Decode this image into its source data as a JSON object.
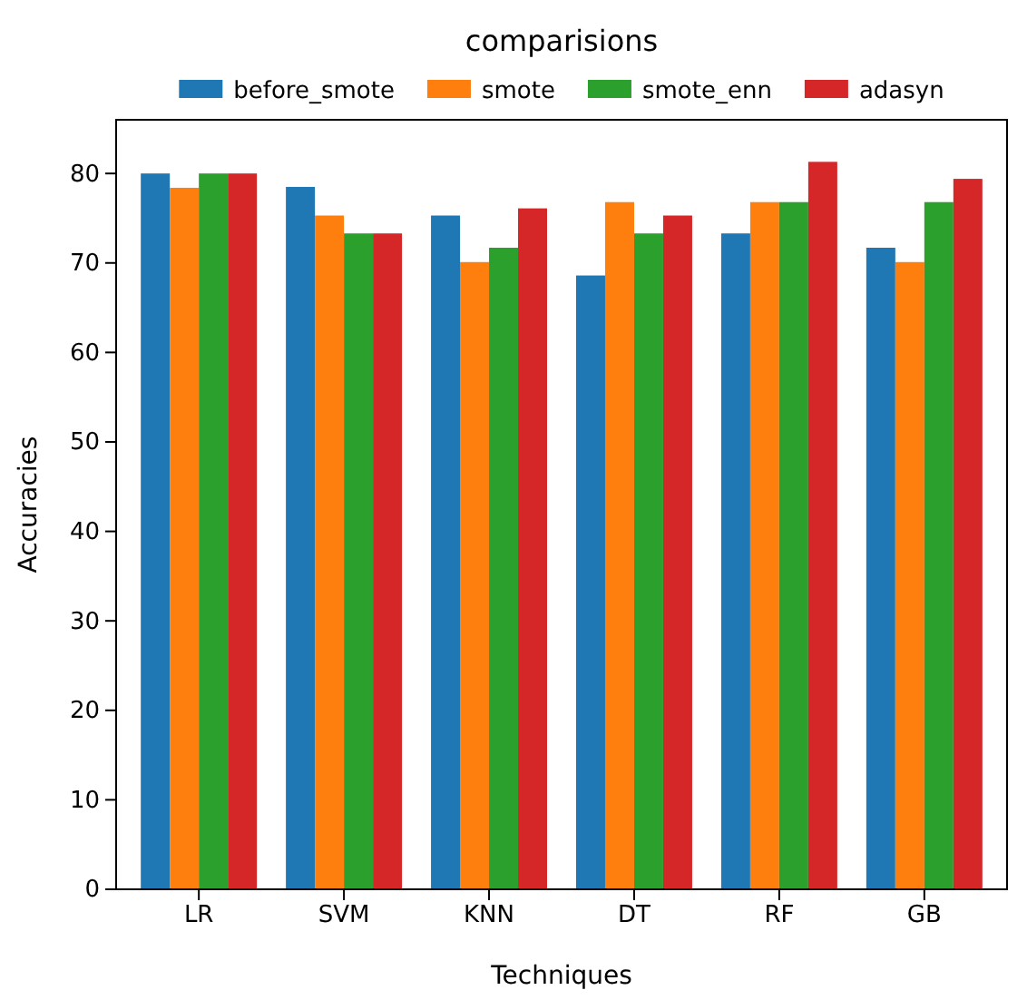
{
  "chart_data": {
    "type": "bar",
    "title": "comparisions",
    "xlabel": "Techniques",
    "ylabel": "Accuracies",
    "categories": [
      "LR",
      "SVM",
      "KNN",
      "DT",
      "RF",
      "GB"
    ],
    "series": [
      {
        "name": "before_smote",
        "color": "#1f77b4",
        "values": [
          80,
          78.5,
          75.3,
          68.6,
          73.3,
          71.7
        ]
      },
      {
        "name": "smote",
        "color": "#ff7f0e",
        "values": [
          78.4,
          75.3,
          70.1,
          76.8,
          76.8,
          70.1
        ]
      },
      {
        "name": "smote_enn",
        "color": "#2ca02c",
        "values": [
          80,
          73.3,
          71.7,
          73.3,
          76.8,
          76.8
        ]
      },
      {
        "name": "adasyn",
        "color": "#d62728",
        "values": [
          80,
          73.3,
          76.1,
          75.3,
          81.3,
          79.4
        ]
      }
    ],
    "ylim": [
      0,
      86
    ],
    "yticks": [
      0,
      10,
      20,
      30,
      40,
      50,
      60,
      70,
      80
    ],
    "grid": false,
    "legend": "top"
  }
}
